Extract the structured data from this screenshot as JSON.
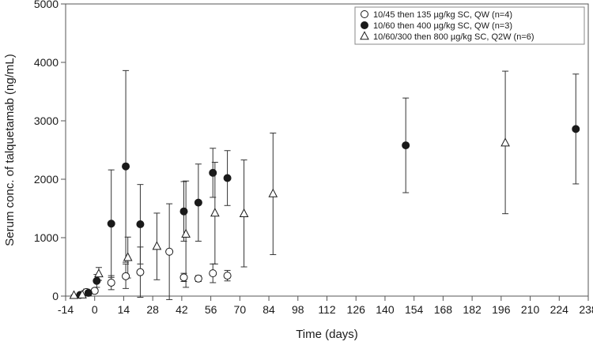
{
  "chart_data": {
    "type": "scatter",
    "xlabel": "Time (days)",
    "ylabel": "Serum conc. of talquetamab (ng/mL)",
    "xlim": [
      -14,
      238
    ],
    "ylim": [
      0,
      5000
    ],
    "x_ticks": [
      "-14",
      "0",
      "14",
      "28",
      "42",
      "56",
      "70",
      "84",
      "98",
      "112",
      "126",
      "140",
      "154",
      "168",
      "182",
      "196",
      "210",
      "224",
      "238"
    ],
    "x_tick_values": [
      -14,
      0,
      14,
      28,
      42,
      56,
      70,
      84,
      98,
      112,
      126,
      140,
      154,
      168,
      182,
      196,
      210,
      224,
      238
    ],
    "y_ticks": [
      "0",
      "1000",
      "2000",
      "3000",
      "4000",
      "5000"
    ],
    "y_tick_values": [
      0,
      1000,
      2000,
      3000,
      4000,
      5000
    ],
    "grid": false,
    "legend_position": "top-right",
    "error_bars": "mean ± SD",
    "series": [
      {
        "name": "10/45 then 135 µg/kg SC, QW (n=4)",
        "marker": "open-circle",
        "color": "#1a1a1a",
        "points": [
          {
            "x": -4,
            "y": 70,
            "lo": 20,
            "hi": 120
          },
          {
            "x": 0,
            "y": 90,
            "lo": 55,
            "hi": 125
          },
          {
            "x": 8,
            "y": 230,
            "lo": 110,
            "hi": 350
          },
          {
            "x": 15,
            "y": 340,
            "lo": 130,
            "hi": 550
          },
          {
            "x": 22,
            "y": 410,
            "lo": -20,
            "hi": 840
          },
          {
            "x": 36,
            "y": 760,
            "lo": -60,
            "hi": 1580
          },
          {
            "x": 43,
            "y": 320,
            "lo": 250,
            "hi": 390
          },
          {
            "x": 50,
            "y": 300,
            "lo": 250,
            "hi": 350
          },
          {
            "x": 57,
            "y": 390,
            "lo": 230,
            "hi": 550
          },
          {
            "x": 64,
            "y": 350,
            "lo": 260,
            "hi": 440
          }
        ]
      },
      {
        "name": "10/60 then 400 µg/kg SC, QW (n=3)",
        "marker": "filled-circle",
        "color": "#1a1a1a",
        "points": [
          {
            "x": -7,
            "y": 20,
            "lo": 5,
            "hi": 35
          },
          {
            "x": -3,
            "y": 55,
            "lo": 10,
            "hi": 100
          },
          {
            "x": 1,
            "y": 260,
            "lo": 150,
            "hi": 370
          },
          {
            "x": 8,
            "y": 1240,
            "lo": 320,
            "hi": 2160
          },
          {
            "x": 15,
            "y": 2220,
            "lo": 580,
            "hi": 3860
          },
          {
            "x": 22,
            "y": 1230,
            "lo": 550,
            "hi": 1910
          },
          {
            "x": 43,
            "y": 1450,
            "lo": 940,
            "hi": 1960
          },
          {
            "x": 50,
            "y": 1600,
            "lo": 940,
            "hi": 2260
          },
          {
            "x": 57,
            "y": 2110,
            "lo": 1690,
            "hi": 2530
          },
          {
            "x": 64,
            "y": 2020,
            "lo": 1550,
            "hi": 2490
          },
          {
            "x": 150,
            "y": 2580,
            "lo": 1770,
            "hi": 3390
          },
          {
            "x": 232,
            "y": 2860,
            "lo": 1920,
            "hi": 3800
          }
        ]
      },
      {
        "name": "10/60/300 then 800 µg/kg SC, Q2W (n=6)",
        "marker": "open-triangle",
        "color": "#1a1a1a",
        "points": [
          {
            "x": -10,
            "y": 10,
            "lo": 0,
            "hi": 20
          },
          {
            "x": -6,
            "y": 20,
            "lo": 5,
            "hi": 35
          },
          {
            "x": 2,
            "y": 380,
            "lo": 270,
            "hi": 490
          },
          {
            "x": 16,
            "y": 660,
            "lo": 310,
            "hi": 1010
          },
          {
            "x": 30,
            "y": 850,
            "lo": 280,
            "hi": 1420
          },
          {
            "x": 44,
            "y": 1060,
            "lo": 150,
            "hi": 1970
          },
          {
            "x": 58,
            "y": 1420,
            "lo": 550,
            "hi": 2290
          },
          {
            "x": 72,
            "y": 1410,
            "lo": 500,
            "hi": 2330
          },
          {
            "x": 86,
            "y": 1750,
            "lo": 710,
            "hi": 2790
          },
          {
            "x": 198,
            "y": 2620,
            "lo": 1410,
            "hi": 3850
          }
        ]
      }
    ]
  }
}
